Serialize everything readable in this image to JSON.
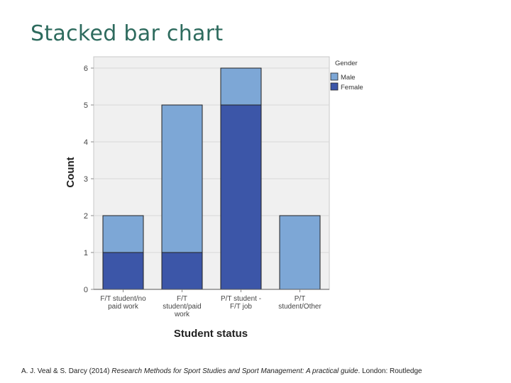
{
  "slide": {
    "title": "Stacked bar chart"
  },
  "citation": {
    "authors": "A. J. Veal & S. Darcy (2014) ",
    "title": "Research Methods for Sport Studies and Sport Management: A practical guide",
    "publisher": ". London: Routledge"
  },
  "chart_data": {
    "type": "bar",
    "stacked": true,
    "title": "",
    "xlabel": "Student status",
    "ylabel": "Count",
    "ylim": [
      0,
      6
    ],
    "yticks": [
      0,
      1,
      2,
      3,
      4,
      5,
      6
    ],
    "categories": [
      [
        "F/T student/no",
        "paid work"
      ],
      [
        "F/T",
        "student/paid",
        "work"
      ],
      [
        "P/T student -",
        "F/T job"
      ],
      [
        "P/T",
        "student/Other"
      ]
    ],
    "legend_title": "Gender",
    "legend_position": "top-right",
    "series": [
      {
        "name": "Female",
        "color": "#3c56a8",
        "values": [
          1,
          1,
          5,
          0
        ]
      },
      {
        "name": "Male",
        "color": "#7da7d6",
        "values": [
          1,
          4,
          1,
          2
        ]
      }
    ],
    "legend_order": [
      "Male",
      "Female"
    ]
  }
}
